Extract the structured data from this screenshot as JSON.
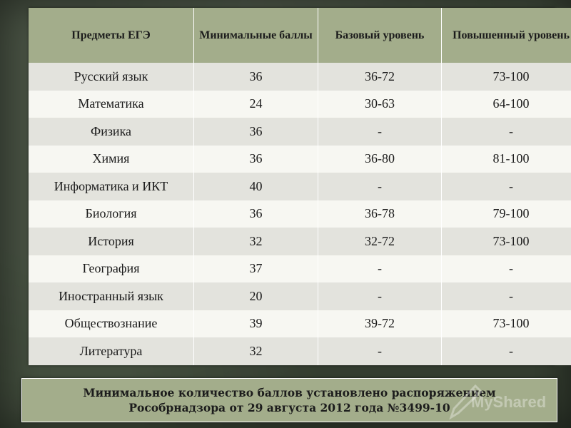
{
  "table": {
    "headers": [
      "Предметы ЕГЭ",
      "Минимальные баллы",
      "Базовый уровень",
      "Повышенный уровень"
    ],
    "rows": [
      [
        "Русский язык",
        "36",
        "36-72",
        "73-100"
      ],
      [
        "Математика",
        "24",
        "30-63",
        "64-100"
      ],
      [
        "Физика",
        "36",
        "-",
        "-"
      ],
      [
        "Химия",
        "36",
        "36-80",
        "81-100"
      ],
      [
        "Информатика и ИКТ",
        "40",
        "-",
        "-"
      ],
      [
        "Биология",
        "36",
        "36-78",
        "79-100"
      ],
      [
        "История",
        "32",
        "32-72",
        "73-100"
      ],
      [
        "География",
        "37",
        "-",
        "-"
      ],
      [
        "Иностранный язык",
        "20",
        "-",
        "-"
      ],
      [
        "Обществознание",
        "39",
        "39-72",
        "73-100"
      ],
      [
        "Литература",
        "32",
        "-",
        "-"
      ]
    ]
  },
  "note": {
    "line1": "Минимальное количество баллов установлено распоряжением",
    "line2": "Рособрнадзора от 29 августа 2012 года №3499-10"
  },
  "watermark": {
    "text": "MyShared"
  },
  "colors": {
    "header_bg": "#a3ad8b",
    "row_odd": "#e3e3dd",
    "row_even": "#f7f7f2",
    "background": "#3f4a3a"
  }
}
